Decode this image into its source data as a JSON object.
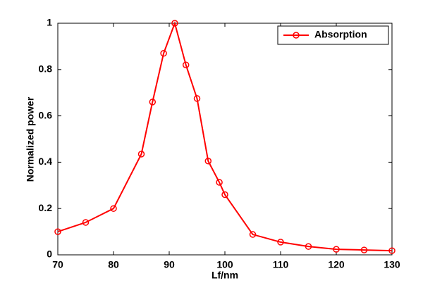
{
  "chart_data": {
    "type": "line",
    "x_label": "Lf/nm",
    "y_label": "Normalized power",
    "x": [
      70,
      75,
      80,
      85,
      87,
      89,
      91,
      93,
      95,
      97,
      99,
      100,
      105,
      110,
      115,
      120,
      125,
      130
    ],
    "series": [
      {
        "name": "Absorption",
        "color": "#ff0000",
        "values": [
          0.1,
          0.14,
          0.2,
          0.435,
          0.66,
          0.87,
          1.0,
          0.82,
          0.675,
          0.405,
          0.313,
          0.26,
          0.088,
          0.055,
          0.036,
          0.024,
          0.021,
          0.018
        ]
      }
    ],
    "xlim": [
      70,
      130
    ],
    "xticks": [
      70,
      80,
      90,
      100,
      110,
      120,
      130
    ],
    "ylim": [
      0,
      1
    ],
    "yticks": [
      0,
      0.2,
      0.4,
      0.6,
      0.8,
      1
    ],
    "grid": false,
    "legend": "upper right",
    "marker": "open-circle"
  }
}
